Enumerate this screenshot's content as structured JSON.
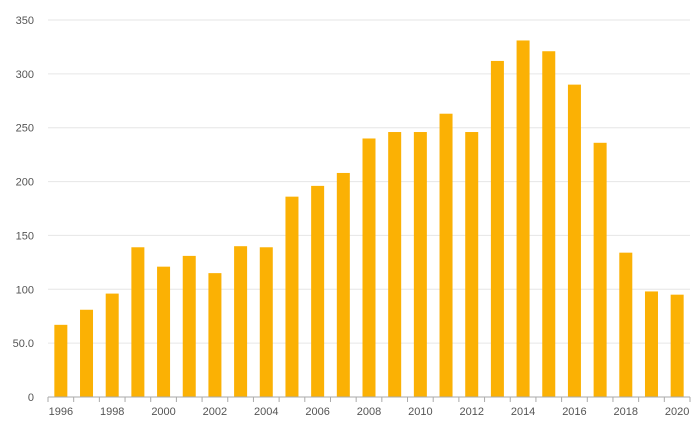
{
  "chart_data": {
    "type": "bar",
    "title": "",
    "xlabel": "",
    "ylabel": "",
    "ylim": [
      0,
      350
    ],
    "yticks": [
      0,
      50,
      100,
      150,
      200,
      250,
      300,
      350
    ],
    "ytick_labels": [
      "0",
      "50.0",
      "100",
      "150",
      "200",
      "250",
      "300",
      "350"
    ],
    "categories": [
      "1996",
      "1997",
      "1998",
      "1999",
      "2000",
      "2001",
      "2002",
      "2003",
      "2004",
      "2005",
      "2006",
      "2007",
      "2008",
      "2009",
      "2010",
      "2011",
      "2012",
      "2013",
      "2014",
      "2015",
      "2016",
      "2017",
      "2018",
      "2019",
      "2020"
    ],
    "xtick_labels": [
      "1996",
      "1998",
      "2000",
      "2002",
      "2004",
      "2006",
      "2008",
      "2010",
      "2012",
      "2014",
      "2016",
      "2018",
      "2020"
    ],
    "values": [
      67,
      81,
      96,
      139,
      121,
      131,
      115,
      140,
      139,
      186,
      196,
      208,
      240,
      246,
      246,
      263,
      246,
      312,
      331,
      321,
      290,
      236,
      134,
      98,
      95
    ],
    "grid": true,
    "colors": {
      "bar": "#FBB104",
      "grid": "#e6e6e6",
      "axis": "#aaaaaa"
    }
  }
}
